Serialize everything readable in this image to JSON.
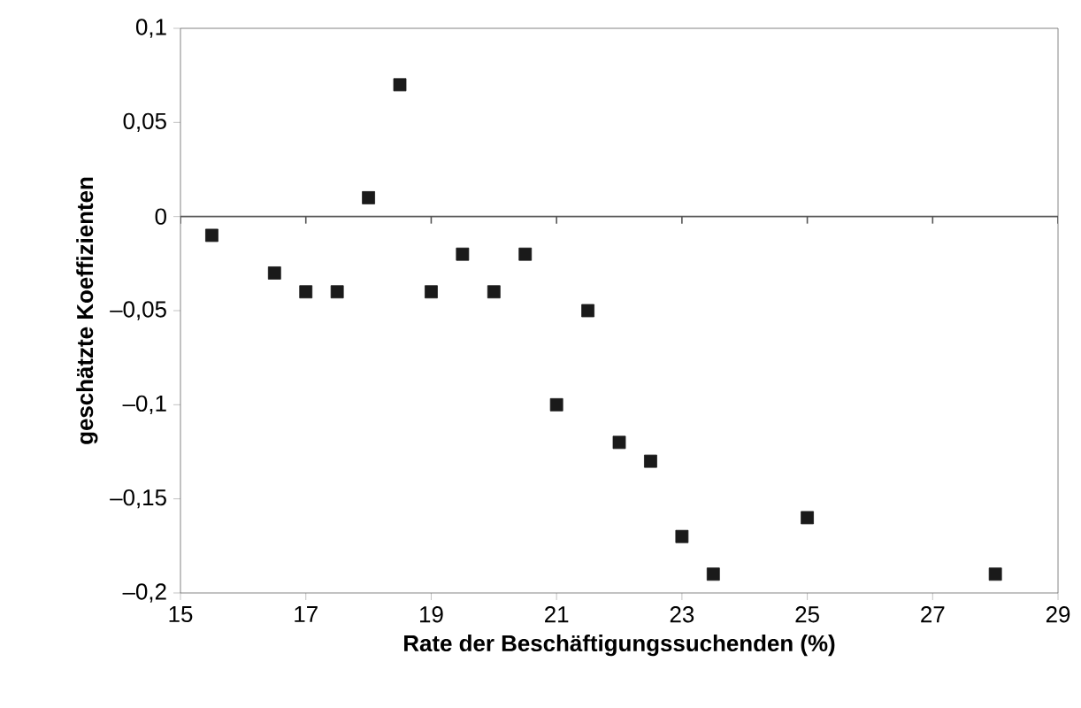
{
  "chart_data": {
    "type": "scatter",
    "xlabel": "Rate der Beschäftigungssuchenden (%)",
    "ylabel": "geschätzte Koeffizienten",
    "x": [
      15.5,
      16.5,
      17,
      17.5,
      18,
      18.5,
      19,
      19.5,
      20,
      20.5,
      21,
      21.5,
      22,
      22.5,
      23,
      23.5,
      25,
      28
    ],
    "series": [
      {
        "color": "#1a1a1a",
        "values": [
          -0.01,
          -0.03,
          -0.04,
          -0.04,
          0.01,
          0.07,
          -0.04,
          -0.02,
          -0.04,
          -0.02,
          -0.1,
          -0.05,
          -0.12,
          -0.13,
          -0.17,
          -0.19,
          -0.16,
          -0.19
        ]
      }
    ],
    "xlim": [
      15,
      29
    ],
    "xticks": [
      15,
      17,
      19,
      21,
      23,
      25,
      27,
      29
    ],
    "ylim": [
      -0.2,
      0.1
    ],
    "yticks": [
      {
        "value": -0.2,
        "label": "–0,2"
      },
      {
        "value": -0.15,
        "label": "–0,15"
      },
      {
        "value": -0.1,
        "label": "–0,1"
      },
      {
        "value": -0.05,
        "label": "–0,05"
      },
      {
        "value": 0,
        "label": "0"
      },
      {
        "value": 0.05,
        "label": "0,05"
      },
      {
        "value": 0.1,
        "label": "0,1"
      }
    ],
    "ref_lines": [
      {
        "axis": "y",
        "value": 0
      }
    ],
    "marker": "square"
  }
}
